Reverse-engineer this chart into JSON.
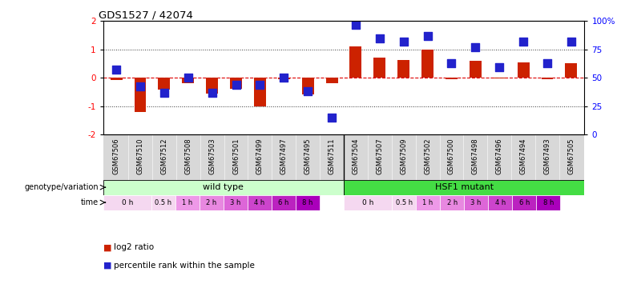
{
  "title": "GDS1527 / 42074",
  "samples": [
    "GSM67506",
    "GSM67510",
    "GSM67512",
    "GSM67508",
    "GSM67503",
    "GSM67501",
    "GSM67499",
    "GSM67497",
    "GSM67495",
    "GSM67511",
    "GSM67504",
    "GSM67507",
    "GSM67509",
    "GSM67502",
    "GSM67500",
    "GSM67498",
    "GSM67496",
    "GSM67494",
    "GSM67493",
    "GSM67505"
  ],
  "log2_ratio": [
    -0.08,
    -1.22,
    -0.42,
    -0.2,
    -0.55,
    -0.38,
    -1.0,
    -0.05,
    -0.6,
    -0.2,
    1.1,
    0.72,
    0.62,
    1.0,
    -0.04,
    0.6,
    -0.02,
    0.55,
    -0.04,
    0.5
  ],
  "percentile_rank": [
    57,
    42,
    37,
    50,
    37,
    44,
    44,
    50,
    38,
    15,
    97,
    85,
    82,
    87,
    63,
    77,
    59,
    82,
    63,
    82
  ],
  "bar_color": "#cc2200",
  "dot_color": "#2222cc",
  "ylim": [
    -2,
    2
  ],
  "y2lim": [
    0,
    100
  ],
  "yticks": [
    -2,
    -1,
    0,
    1,
    2
  ],
  "y2ticks": [
    0,
    25,
    50,
    75,
    100
  ],
  "wild_type_samples": 10,
  "wild_type_label": "wild type",
  "mutant_label": "HSF1 mutant",
  "wild_type_color": "#ccffcc",
  "mutant_color": "#44dd44",
  "time_labels": [
    "0 h",
    "0.5 h",
    "1 h",
    "2 h",
    "3 h",
    "4 h",
    "6 h",
    "8 h"
  ],
  "time_colors": [
    "#f5d8f0",
    "#f5d8f0",
    "#ee99e8",
    "#e888e0",
    "#dd66d8",
    "#cc44cc",
    "#bb22c0",
    "#aa00bb"
  ],
  "time_widths": [
    2,
    1,
    1,
    1,
    1,
    1,
    1,
    1
  ],
  "bg_color": "#ffffff",
  "label_bg": "#d8d8d8"
}
